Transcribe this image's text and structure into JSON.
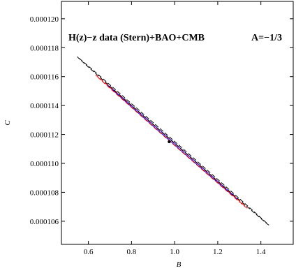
{
  "chart_data": {
    "type": "contour",
    "annotation_left": "H(z)−z data (Stern)+BAO+CMB",
    "annotation_right": "A=−1/3",
    "xlabel": "B",
    "ylabel": "C",
    "xlim": [
      0.475,
      1.55
    ],
    "ylim": [
      0.0001044,
      0.0001212
    ],
    "xticks": [
      {
        "value": 0.6,
        "label": "0.6"
      },
      {
        "value": 0.8,
        "label": "0.8"
      },
      {
        "value": 1.0,
        "label": "1.0"
      },
      {
        "value": 1.2,
        "label": "1.2"
      },
      {
        "value": 1.4,
        "label": "1.4"
      }
    ],
    "yticks": [
      {
        "value": 0.000106,
        "label": "0.000106"
      },
      {
        "value": 0.000108,
        "label": "0.000108"
      },
      {
        "value": 0.00011,
        "label": "0.000110"
      },
      {
        "value": 0.000112,
        "label": "0.000112"
      },
      {
        "value": 0.000114,
        "label": "0.000114"
      },
      {
        "value": 0.000116,
        "label": "0.000116"
      },
      {
        "value": 0.000118,
        "label": "0.000118"
      },
      {
        "value": 0.00012,
        "label": "0.000120"
      }
    ],
    "best_fit": {
      "x": 0.975,
      "y": 0.0001115
    },
    "contours": [
      {
        "level": 1,
        "style": "solid",
        "color": "#0000ff",
        "x_extent": [
          0.73,
          1.245
        ],
        "y_extent": [
          0.0001087,
          0.0001143
        ]
      },
      {
        "level": 2,
        "style": "dashed",
        "color": "#ff0000",
        "x_extent": [
          0.685,
          1.285
        ],
        "y_extent": [
          0.0001081,
          0.0001149
        ]
      },
      {
        "level": 3,
        "style": "dashed",
        "color": "#000000",
        "x_extent": [
          0.615,
          1.37
        ],
        "y_extent": [
          0.0001073,
          0.0001158
        ]
      }
    ]
  }
}
